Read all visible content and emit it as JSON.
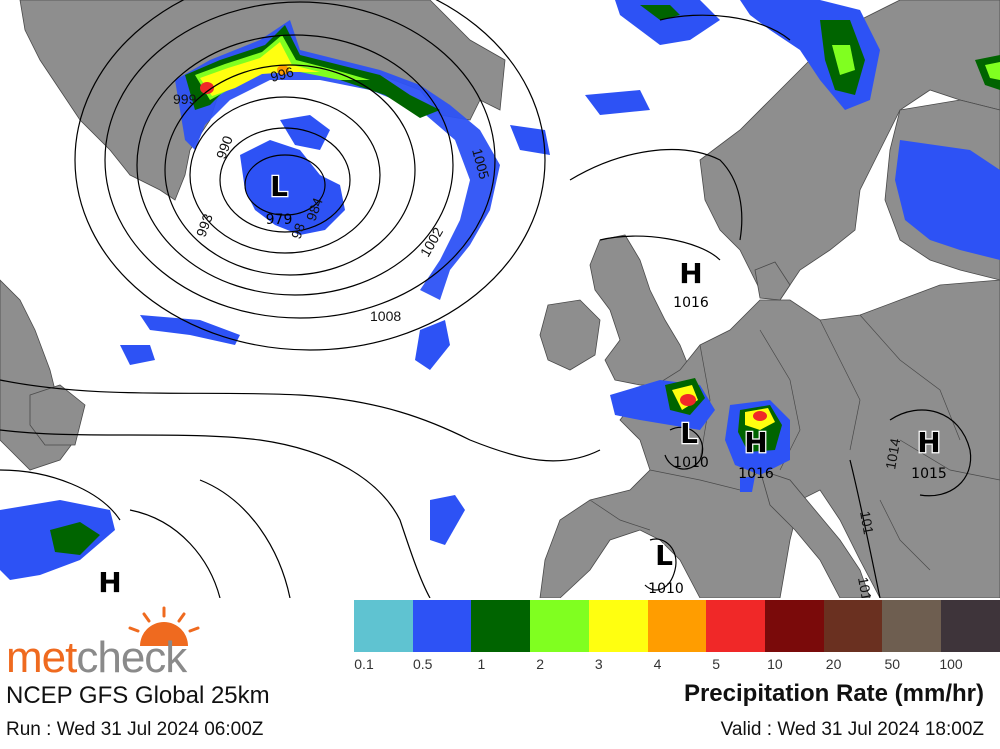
{
  "brand": {
    "name_part1": "met",
    "name_part2": "check",
    "logo_icon": "sun-icon",
    "color_orange": "#ef6a1f",
    "color_grey": "#8a8a8a"
  },
  "model_label": "NCEP GFS Global 25km",
  "run_label": "Run : Wed 31 Jul 2024 06:00Z",
  "valid_label": "Valid : Wed 31 Jul 2024 18:00Z",
  "legend": {
    "title": "Precipitation Rate (mm/hr)",
    "colors": [
      "#5fc3d1",
      "#2d52f5",
      "#006400",
      "#80ff20",
      "#ffff10",
      "#ff9d00",
      "#f02828",
      "#7a0a0a",
      "#6a3020",
      "#6e5e50",
      "#3e343a"
    ],
    "ticks": [
      "0.1",
      "0.5",
      "1",
      "2",
      "3",
      "4",
      "5",
      "10",
      "20",
      "50",
      "100"
    ]
  },
  "pressure_centers": [
    {
      "type": "L",
      "value": "979"
    },
    {
      "type": "H",
      "value": "1016"
    },
    {
      "type": "L",
      "value": "1010"
    },
    {
      "type": "H",
      "value": "1016"
    },
    {
      "type": "H",
      "value": "1015"
    },
    {
      "type": "L",
      "value": "1010"
    },
    {
      "type": "H",
      "value": ""
    }
  ],
  "isobar_labels": [
    "999",
    "996",
    "990",
    "993",
    "984",
    "98",
    "1002",
    "1005",
    "1008",
    "1014",
    "101",
    "101"
  ],
  "map_colors": {
    "land": "#8e8e8e",
    "border": "#4a4a4a",
    "isobar": "#000000",
    "ocean": "#ffffff"
  }
}
